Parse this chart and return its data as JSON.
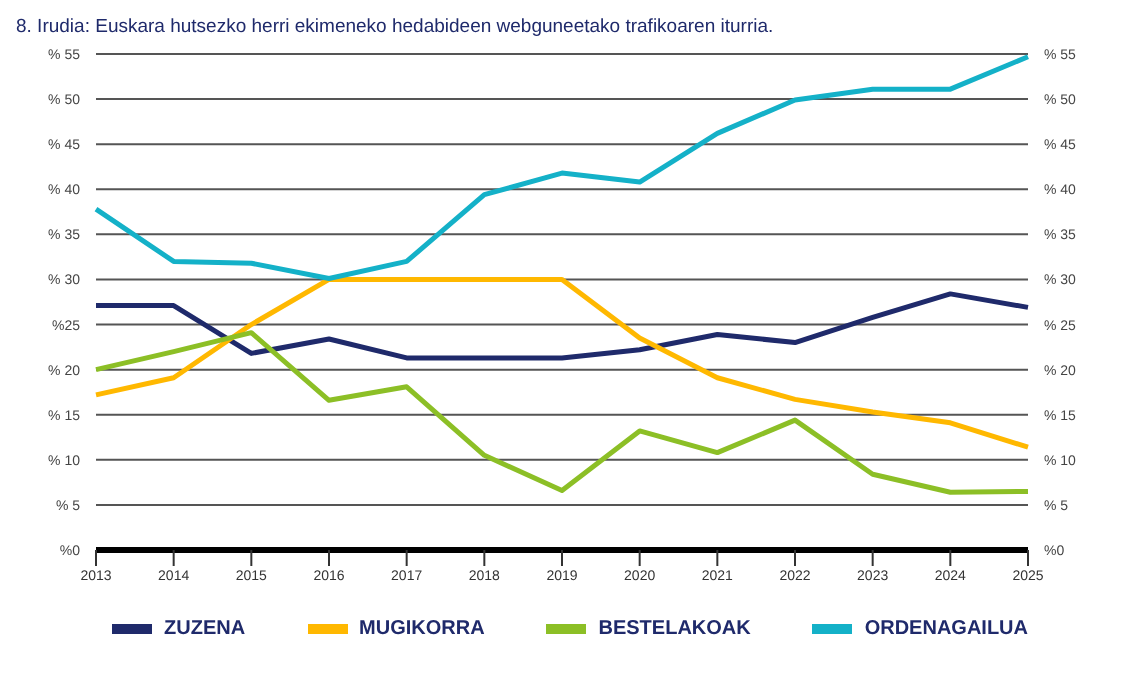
{
  "chart_data": {
    "type": "line",
    "title": "8. Irudia: Euskara hutsezko herri ekimeneko hedabideen webguneetako trafikoaren iturria.",
    "categories": [
      "2013",
      "2014",
      "2015",
      "2016",
      "2017",
      "2018",
      "2019",
      "2020",
      "2021",
      "2022",
      "2023",
      "2024",
      "2025"
    ],
    "series": [
      {
        "name": "ZUZENA",
        "color": "#1f2a6b",
        "values": [
          27.1,
          27.1,
          21.8,
          23.4,
          21.3,
          21.3,
          21.3,
          22.2,
          23.9,
          23.0,
          25.8,
          28.4,
          26.9
        ]
      },
      {
        "name": "MUGIKORRA",
        "color": "#ffb800",
        "values": [
          17.2,
          19.1,
          25.0,
          30,
          30,
          30,
          30,
          23.5,
          19.1,
          16.7,
          15.3,
          14.1,
          11.4
        ]
      },
      {
        "name": "BESTELAKOAK",
        "color": "#8cbf26",
        "values": [
          20,
          22.0,
          24.1,
          16.6,
          18.1,
          10.5,
          6.6,
          13.2,
          10.8,
          14.4,
          8.4,
          6.4,
          6.5
        ]
      },
      {
        "name": "ORDENAGAILUA",
        "color": "#14b1c8",
        "values": [
          37.8,
          32.0,
          31.8,
          30.1,
          32.0,
          39.4,
          41.8,
          40.8,
          46.2,
          49.9,
          51.1,
          51.1,
          54.7
        ]
      }
    ],
    "ylim": [
      0,
      55
    ],
    "yticks": [
      {
        "value": 0,
        "label": "%0"
      },
      {
        "value": 5,
        "label": "% 5"
      },
      {
        "value": 10,
        "label": "% 10"
      },
      {
        "value": 15,
        "label": "% 15"
      },
      {
        "value": 20,
        "label": "% 20"
      },
      {
        "value": 25,
        "label": "%25"
      },
      {
        "value": 30,
        "label": "% 30"
      },
      {
        "value": 35,
        "label": "% 35"
      },
      {
        "value": 40,
        "label": "% 40"
      },
      {
        "value": 45,
        "label": "% 45"
      },
      {
        "value": 50,
        "label": "% 50"
      },
      {
        "value": 55,
        "label": "% 55"
      }
    ],
    "y2lim": [
      0,
      55
    ],
    "y2ticks": [
      {
        "value": 0,
        "label": "%0"
      },
      {
        "value": 5,
        "label": "% 5"
      },
      {
        "value": 10,
        "label": "% 10"
      },
      {
        "value": 15,
        "label": "% 15"
      },
      {
        "value": 20,
        "label": "% 20"
      },
      {
        "value": 25,
        "label": "% 25"
      },
      {
        "value": 30,
        "label": "% 30"
      },
      {
        "value": 35,
        "label": "% 35"
      },
      {
        "value": 40,
        "label": "% 40"
      },
      {
        "value": 45,
        "label": "% 45"
      },
      {
        "value": 50,
        "label": "% 50"
      },
      {
        "value": 55,
        "label": "% 55"
      }
    ],
    "grid": "y",
    "legend": "bottom",
    "marker": "none",
    "line_style": "solid"
  }
}
